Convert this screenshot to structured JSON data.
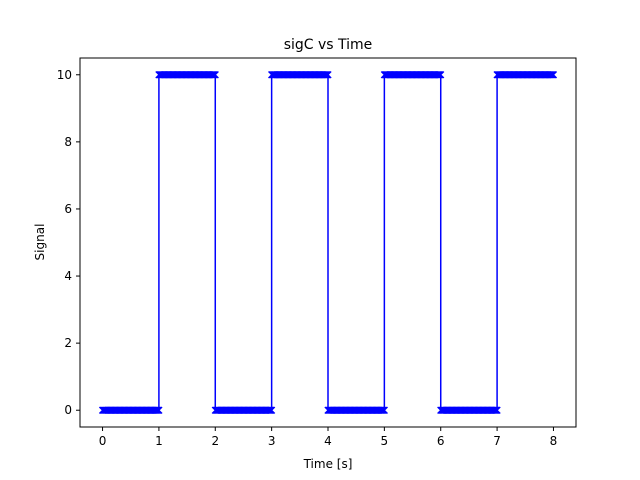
{
  "chart_data": {
    "type": "line",
    "title": "sigC vs Time",
    "xlabel": "Time [s]",
    "ylabel": "Signal",
    "xlim": [
      -0.4,
      8.4
    ],
    "ylim": [
      -0.5,
      10.5
    ],
    "xticks": [
      0,
      1,
      2,
      3,
      4,
      5,
      6,
      7,
      8
    ],
    "yticks": [
      0,
      2,
      4,
      6,
      8,
      10
    ],
    "grid": false,
    "line_color": "#0000ff",
    "marker": "x",
    "series": [
      {
        "step_x": [
          0,
          1,
          1,
          2,
          2,
          3,
          3,
          4,
          4,
          5,
          5,
          6,
          6,
          7,
          7,
          8
        ],
        "step_y": [
          0,
          0,
          10,
          10,
          0,
          0,
          10,
          10,
          0,
          0,
          10,
          10,
          0,
          0,
          10,
          10
        ],
        "sample_interval": 0.01,
        "segments": [
          {
            "x_start": 0,
            "x_end": 1,
            "value": 0
          },
          {
            "x_start": 1,
            "x_end": 2,
            "value": 10
          },
          {
            "x_start": 2,
            "x_end": 3,
            "value": 0
          },
          {
            "x_start": 3,
            "x_end": 4,
            "value": 10
          },
          {
            "x_start": 4,
            "x_end": 5,
            "value": 0
          },
          {
            "x_start": 5,
            "x_end": 6,
            "value": 10
          },
          {
            "x_start": 6,
            "x_end": 7,
            "value": 0
          },
          {
            "x_start": 7,
            "x_end": 8,
            "value": 10
          }
        ]
      }
    ]
  }
}
